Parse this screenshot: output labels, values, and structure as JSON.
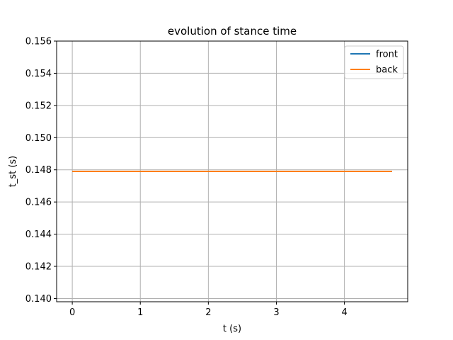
{
  "chart_data": {
    "type": "line",
    "title": "evolution of stance time",
    "xlabel": "t (s)",
    "ylabel": "t_st (s)",
    "xlim": [
      -0.23,
      4.93
    ],
    "ylim": [
      0.1398,
      0.156
    ],
    "x_ticks": [
      0,
      1,
      2,
      3,
      4
    ],
    "x_tick_labels": [
      "0",
      "1",
      "2",
      "3",
      "4"
    ],
    "y_ticks": [
      0.14,
      0.142,
      0.144,
      0.146,
      0.148,
      0.15,
      0.152,
      0.154,
      0.156
    ],
    "y_tick_labels": [
      "0.140",
      "0.142",
      "0.144",
      "0.146",
      "0.148",
      "0.150",
      "0.152",
      "0.154",
      "0.156"
    ],
    "grid": true,
    "legend_position": "top-right",
    "series": [
      {
        "name": "front",
        "color": "#1f77b4",
        "x": [
          0,
          4.7
        ],
        "y": [
          0.1479,
          0.1479
        ]
      },
      {
        "name": "back",
        "color": "#ff7f0e",
        "x": [
          0,
          4.7
        ],
        "y": [
          0.1479,
          0.1479
        ]
      }
    ]
  }
}
